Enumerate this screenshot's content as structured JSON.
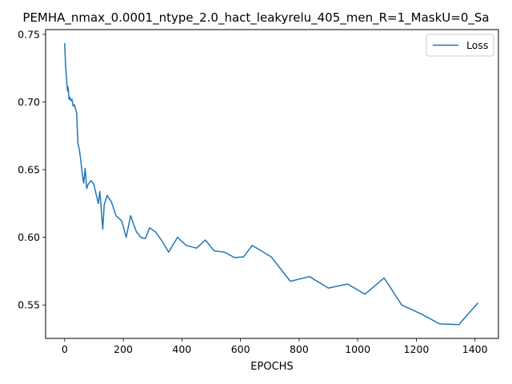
{
  "chart_data": {
    "type": "line",
    "title": "PEMHA_nmax_0.0001_ntype_2.0_hact_leakyrelu_405_men_R=1_MaskU=0_Sa",
    "xlabel": "EPOCHS",
    "ylabel": "",
    "xlim": [
      -65,
      1480
    ],
    "ylim": [
      0.5253,
      0.7535
    ],
    "xticks": [
      0,
      200,
      400,
      600,
      800,
      1000,
      1200,
      1400
    ],
    "yticks": [
      0.55,
      0.6,
      0.65,
      0.7,
      0.75
    ],
    "ytick_labels": [
      "0.55",
      "0.60",
      "0.65",
      "0.70",
      "0.75"
    ],
    "grid": false,
    "legend": {
      "placement": "upper-right"
    },
    "series": [
      {
        "name": "Loss",
        "color": "#1f77b4",
        "x": [
          0,
          3,
          7,
          10,
          12,
          15,
          18,
          21,
          25,
          29,
          33,
          37,
          41,
          45,
          50,
          55,
          60,
          65,
          70,
          75,
          80,
          90,
          100,
          105,
          115,
          120,
          130,
          135,
          145,
          160,
          175,
          195,
          210,
          225,
          245,
          260,
          275,
          290,
          310,
          330,
          355,
          385,
          415,
          450,
          480,
          510,
          545,
          580,
          610,
          640,
          705,
          770,
          835,
          900,
          965,
          1025,
          1090,
          1150,
          1215,
          1280,
          1345,
          1410
        ],
        "y": [
          0.7435,
          0.728,
          0.715,
          0.708,
          0.711,
          0.702,
          0.7035,
          0.701,
          0.702,
          0.697,
          0.698,
          0.695,
          0.692,
          0.67,
          0.665,
          0.657,
          0.647,
          0.64,
          0.651,
          0.636,
          0.639,
          0.642,
          0.639,
          0.634,
          0.625,
          0.634,
          0.606,
          0.624,
          0.631,
          0.626,
          0.616,
          0.612,
          0.6,
          0.616,
          0.604,
          0.6,
          0.599,
          0.607,
          0.604,
          0.598,
          0.589,
          0.6,
          0.594,
          0.592,
          0.598,
          0.59,
          0.589,
          0.585,
          0.5855,
          0.594,
          0.5855,
          0.5675,
          0.571,
          0.5625,
          0.5655,
          0.558,
          0.57,
          0.55,
          0.5435,
          0.536,
          0.5355,
          0.5515
        ]
      }
    ]
  }
}
